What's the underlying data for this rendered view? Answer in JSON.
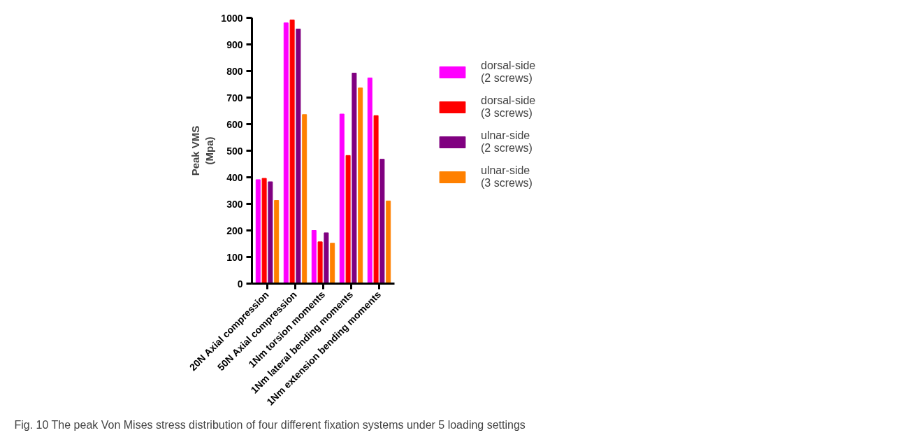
{
  "chart_data": {
    "type": "bar",
    "ylabel": "Peak VMS\n(Mpa)",
    "categories": [
      "20N Axial compression",
      "50N Axial compression",
      "1Nm torsion moments",
      "1Nm lateral bending moments",
      "1Nm extension bending moments"
    ],
    "series": [
      {
        "name": "dorsal-side\n(2 screws)",
        "color": "#ff00ff",
        "values": [
          391,
          981,
          200,
          638,
          774
        ]
      },
      {
        "name": "dorsal-side\n(3 screws)",
        "color": "#ff0000",
        "values": [
          396,
          992,
          157,
          482,
          632
        ]
      },
      {
        "name": "ulnar-side\n(2 screws)",
        "color": "#800080",
        "values": [
          383,
          958,
          191,
          792,
          468
        ]
      },
      {
        "name": "ulnar-side\n(3 screws)",
        "color": "#ff8000",
        "values": [
          313,
          636,
          152,
          736,
          311
        ]
      }
    ],
    "ylim": [
      0,
      1000
    ],
    "yticks": [
      0,
      100,
      200,
      300,
      400,
      500,
      600,
      700,
      800,
      900,
      1000
    ],
    "grid": false,
    "legend": "right",
    "annotations": [
      "Fig. 10 The peak Von Mises stress distribution of four different fixation systems under 5 loading settings"
    ]
  }
}
